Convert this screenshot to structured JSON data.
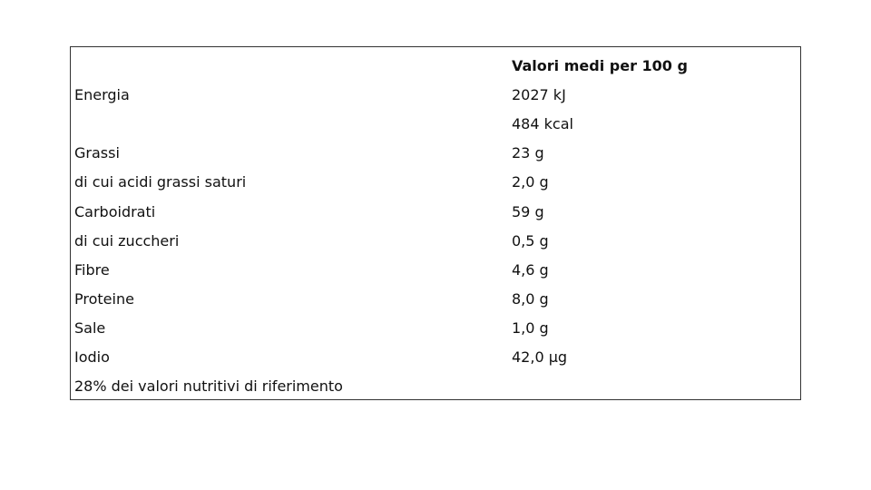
{
  "table": {
    "header": "Valori medi per 100 g",
    "rows": [
      {
        "label": "Energia",
        "value": "2027 kJ"
      },
      {
        "label": "",
        "value": "484 kcal"
      },
      {
        "label": "Grassi",
        "value": "23 g"
      },
      {
        "label": "di cui acidi grassi saturi",
        "value": "2,0 g"
      },
      {
        "label": "Carboidrati",
        "value": "59 g"
      },
      {
        "label": "di cui zuccheri",
        "value": "0,5 g"
      },
      {
        "label": "Fibre",
        "value": "4,6 g"
      },
      {
        "label": "Proteine",
        "value": "8,0 g"
      },
      {
        "label": "Sale",
        "value": "1,0 g"
      },
      {
        "label": "Iodio",
        "value": "42,0 µg"
      }
    ],
    "footnote": "28% dei valori nutritivi di riferimento"
  }
}
